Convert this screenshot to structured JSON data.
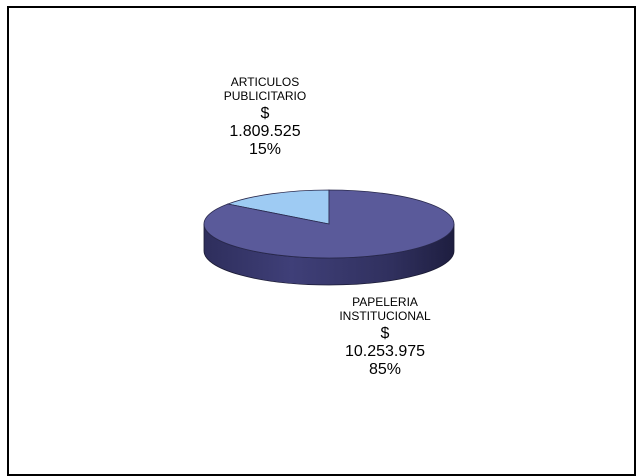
{
  "chart_data": {
    "type": "pie",
    "style": "3d",
    "title": "",
    "slices": [
      {
        "label": "ARTICULOS\nPUBLICITARIO",
        "currency": "$",
        "value": 1809525,
        "value_text": "1.809.525",
        "percent": 15,
        "percent_text": "15%",
        "color": "#9ecbf3"
      },
      {
        "label": "PAPELERIA\nINSTITUCIONAL",
        "currency": "$",
        "value": 10253975,
        "value_text": "10.253.975",
        "percent": 85,
        "percent_text": "85%",
        "color": "#5a5a9a"
      }
    ]
  },
  "colors": {
    "frame_border": "#000000",
    "background": "#ffffff",
    "side_dark": "#2a2a52",
    "side_light": "#6a6aa6"
  }
}
